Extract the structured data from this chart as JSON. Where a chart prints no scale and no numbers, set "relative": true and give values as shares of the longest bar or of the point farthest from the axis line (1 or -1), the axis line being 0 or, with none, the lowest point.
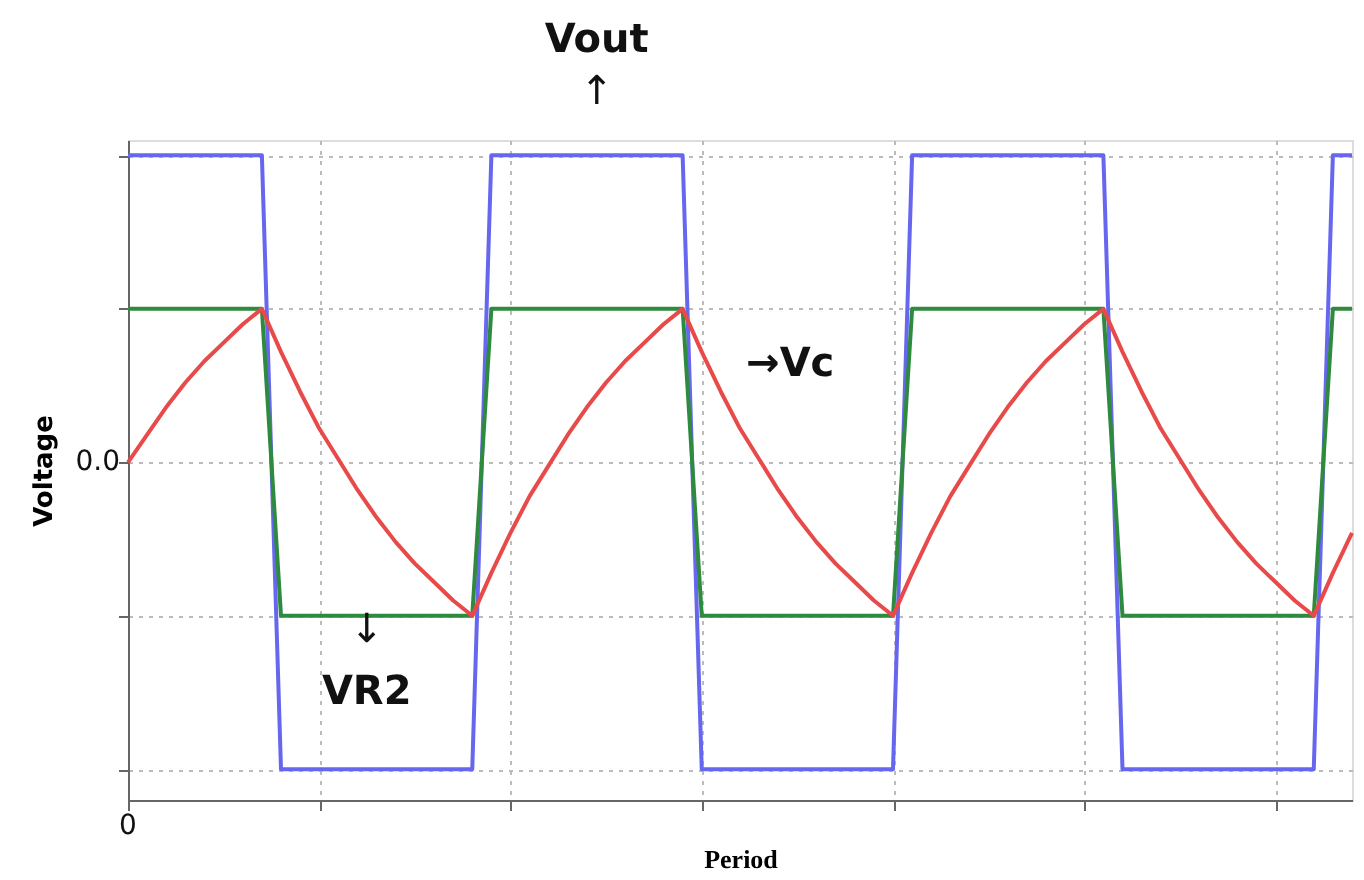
{
  "chart_data": {
    "type": "line",
    "relative": true,
    "xlabel": "Period",
    "ylabel": "Voltage",
    "categories": [
      null,
      null,
      null,
      null,
      null,
      null,
      null,
      null,
      null,
      null,
      null,
      null,
      null,
      null,
      null,
      null,
      null,
      null,
      null,
      null,
      null,
      null,
      null,
      null,
      null,
      null,
      null,
      null,
      null,
      null,
      null,
      null,
      null,
      null,
      null,
      null,
      null,
      null,
      null,
      null,
      null,
      null,
      null,
      null,
      null,
      null,
      null,
      null,
      null,
      null,
      null,
      null,
      null,
      null,
      null,
      null,
      null,
      null,
      null,
      null,
      null,
      null,
      null,
      null,
      null
    ],
    "grid": true,
    "line_style": "solid",
    "marker": "none",
    "series": [
      {
        "color": "#6666ee",
        "values": [
          1,
          1,
          1,
          1,
          1,
          1,
          1,
          1,
          -1,
          -1,
          -1,
          -1,
          -1,
          -1,
          -1,
          -1,
          -1,
          -1,
          -1,
          1,
          1,
          1,
          1,
          1,
          1,
          1,
          1,
          1,
          1,
          1,
          -1,
          -1,
          -1,
          -1,
          -1,
          -1,
          -1,
          -1,
          -1,
          -1,
          -1,
          1,
          1,
          1,
          1,
          1,
          1,
          1,
          1,
          1,
          1,
          1,
          -1,
          -1,
          -1,
          -1,
          -1,
          -1,
          -1,
          -1,
          -1,
          -1,
          -1,
          1,
          1
        ]
      },
      {
        "color": "#2e8b3e",
        "values": [
          0.5,
          0.5,
          0.5,
          0.5,
          0.5,
          0.5,
          0.5,
          0.5,
          -0.5,
          -0.5,
          -0.5,
          -0.5,
          -0.5,
          -0.5,
          -0.5,
          -0.5,
          -0.5,
          -0.5,
          -0.5,
          0.5,
          0.5,
          0.5,
          0.5,
          0.5,
          0.5,
          0.5,
          0.5,
          0.5,
          0.5,
          0.5,
          -0.5,
          -0.5,
          -0.5,
          -0.5,
          -0.5,
          -0.5,
          -0.5,
          -0.5,
          -0.5,
          -0.5,
          -0.5,
          0.5,
          0.5,
          0.5,
          0.5,
          0.5,
          0.5,
          0.5,
          0.5,
          0.5,
          0.5,
          0.5,
          -0.5,
          -0.5,
          -0.5,
          -0.5,
          -0.5,
          -0.5,
          -0.5,
          -0.5,
          -0.5,
          -0.5,
          -0.5,
          0.5,
          0.5
        ]
      },
      {
        "color": "#e84a4a",
        "values": [
          0,
          0.09,
          0.18,
          0.26,
          0.33,
          0.39,
          0.45,
          0.5,
          0.36,
          0.23,
          0.11,
          0.01,
          -0.09,
          -0.18,
          -0.26,
          -0.33,
          -0.39,
          -0.45,
          -0.5,
          -0.36,
          -0.23,
          -0.11,
          -0.01,
          0.09,
          0.18,
          0.26,
          0.33,
          0.39,
          0.45,
          0.5,
          0.36,
          0.23,
          0.11,
          0.01,
          -0.09,
          -0.18,
          -0.26,
          -0.33,
          -0.39,
          -0.45,
          -0.5,
          -0.36,
          -0.23,
          -0.11,
          -0.01,
          0.09,
          0.18,
          0.26,
          0.33,
          0.39,
          0.45,
          0.5,
          0.36,
          0.23,
          0.11,
          0.01,
          -0.09,
          -0.18,
          -0.26,
          -0.33,
          -0.39,
          -0.45,
          -0.5,
          -0.36,
          -0.23
        ]
      }
    ],
    "annotations": [
      "Vout",
      "↑",
      "→Vc",
      "↓",
      "VR2",
      "0",
      "0.0"
    ]
  }
}
